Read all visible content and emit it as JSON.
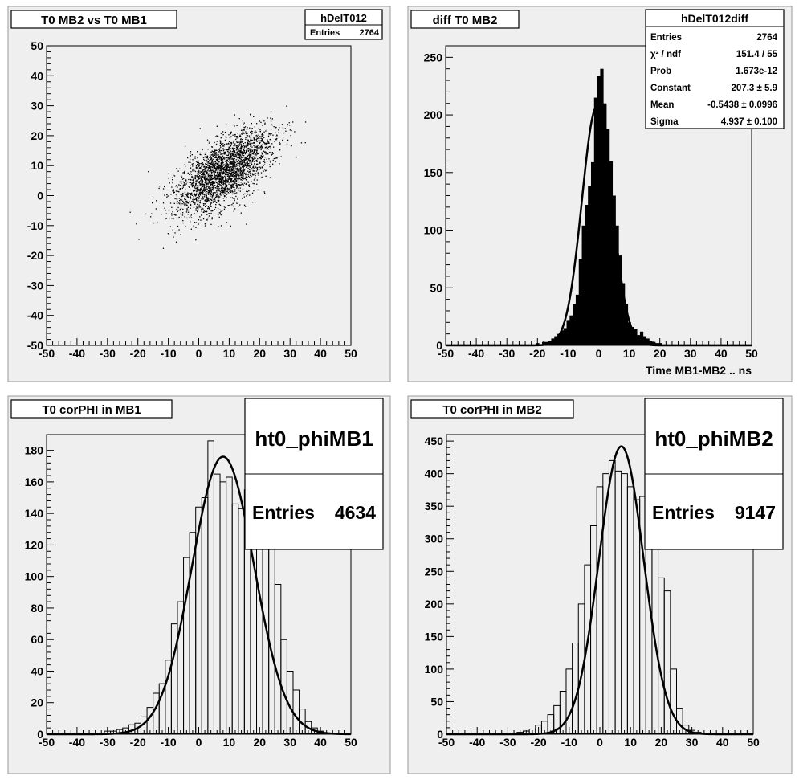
{
  "pads": [
    {
      "id": "tl",
      "title": "T0 MB2 vs T0 MB1",
      "stats": {
        "name": "hDelT012",
        "rows": [
          {
            "label": "Entries",
            "value": "2764"
          }
        ]
      },
      "chart_data": {
        "type": "scatter",
        "xlim": [
          -50,
          50
        ],
        "ylim": [
          -50,
          50
        ],
        "x_ticks": [
          -50,
          -40,
          -30,
          -20,
          -10,
          0,
          10,
          20,
          30,
          40,
          50
        ],
        "y_ticks": [
          -50,
          -40,
          -30,
          -20,
          -10,
          0,
          10,
          20,
          30,
          40,
          50
        ],
        "entries": 2764,
        "distribution": {
          "mean_x": 8,
          "mean_y": 8,
          "sigma_major": 9.5,
          "sigma_minor": 4.5,
          "angle_deg": 40
        },
        "xlabel": "",
        "ylabel": ""
      }
    },
    {
      "id": "tr",
      "title": "diff T0 MB2",
      "stats": {
        "name": "hDelT012diff",
        "rows": [
          {
            "label": "Entries",
            "value": "2764"
          },
          {
            "label": "χ² / ndf",
            "value": "151.4 / 55"
          },
          {
            "label": "Prob",
            "value": "1.673e-12"
          },
          {
            "label": "Constant",
            "value": "207.3 ± 5.9"
          },
          {
            "label": "Mean",
            "value": "-0.5438 ± 0.0996"
          },
          {
            "label": "Sigma",
            "value": "4.937 ± 0.100"
          }
        ]
      },
      "chart_data": {
        "type": "bar",
        "style": "filled-histogram",
        "xlim": [
          -50,
          50
        ],
        "ylim": [
          0,
          260
        ],
        "x_ticks": [
          -50,
          -40,
          -30,
          -20,
          -10,
          0,
          10,
          20,
          30,
          40,
          50
        ],
        "y_ticks": [
          0,
          50,
          100,
          150,
          200,
          250
        ],
        "xlabel": "Time MB1-MB2  ..  ns",
        "bins": {
          "x": [
            -20,
            -19,
            -18,
            -17,
            -16,
            -15,
            -14,
            -13,
            -12,
            -11,
            -10,
            -9,
            -8,
            -7,
            -6,
            -5,
            -4,
            -3,
            -2,
            -1,
            0,
            1,
            2,
            3,
            4,
            5,
            6,
            7,
            8,
            9,
            10,
            11,
            12,
            13,
            14,
            15,
            16,
            17,
            18,
            19,
            20
          ],
          "y": [
            2,
            1,
            3,
            3,
            4,
            6,
            8,
            10,
            13,
            15,
            22,
            26,
            36,
            44,
            75,
            104,
            122,
            138,
            159,
            215,
            234,
            240,
            210,
            188,
            160,
            130,
            104,
            78,
            54,
            36,
            20,
            16,
            14,
            9,
            12,
            8,
            6,
            4,
            3,
            2,
            2
          ]
        },
        "fit": {
          "type": "gaus",
          "constant": 207.3,
          "mean": -0.5438,
          "sigma": 4.937
        }
      }
    },
    {
      "id": "bl",
      "title": "T0 corPHI in MB1",
      "stats": {
        "name": "ht0_phiMB1",
        "rows": [
          {
            "label": "Entries",
            "value": "4634"
          }
        ]
      },
      "chart_data": {
        "type": "bar",
        "style": "outline-histogram",
        "xlim": [
          -50,
          50
        ],
        "ylim": [
          0,
          190
        ],
        "x_ticks": [
          -50,
          -40,
          -30,
          -20,
          -10,
          0,
          10,
          20,
          30,
          40,
          50
        ],
        "y_ticks": [
          0,
          20,
          40,
          60,
          80,
          100,
          120,
          140,
          160,
          180
        ],
        "bins": {
          "x": [
            -30,
            -28,
            -26,
            -24,
            -22,
            -20,
            -18,
            -16,
            -14,
            -12,
            -10,
            -8,
            -6,
            -4,
            -2,
            0,
            2,
            4,
            6,
            8,
            10,
            12,
            14,
            16,
            18,
            20,
            22,
            24,
            26,
            28,
            30,
            32,
            34,
            36,
            38,
            40
          ],
          "y": [
            2,
            2,
            3,
            4,
            6,
            7,
            11,
            17,
            26,
            32,
            47,
            70,
            84,
            112,
            128,
            144,
            150,
            186,
            165,
            160,
            163,
            146,
            143,
            155,
            128,
            134,
            140,
            130,
            95,
            60,
            40,
            28,
            16,
            8,
            4,
            2
          ]
        },
        "fit": {
          "type": "gaus",
          "constant": 176,
          "mean": 8,
          "sigma": 10.2
        }
      }
    },
    {
      "id": "br",
      "title": "T0 corPHI in MB2",
      "stats": {
        "name": "ht0_phiMB2",
        "rows": [
          {
            "label": "Entries",
            "value": "9147"
          }
        ]
      },
      "chart_data": {
        "type": "bar",
        "style": "outline-histogram",
        "xlim": [
          -50,
          50
        ],
        "ylim": [
          0,
          460
        ],
        "x_ticks": [
          -50,
          -40,
          -30,
          -20,
          -10,
          0,
          10,
          20,
          30,
          40,
          50
        ],
        "y_ticks": [
          0,
          50,
          100,
          150,
          200,
          250,
          300,
          350,
          400,
          450
        ],
        "bins": {
          "x": [
            -26,
            -24,
            -22,
            -20,
            -18,
            -16,
            -14,
            -12,
            -10,
            -8,
            -6,
            -4,
            -2,
            0,
            2,
            4,
            6,
            8,
            10,
            12,
            14,
            16,
            18,
            20,
            22,
            24,
            26,
            28,
            30,
            32
          ],
          "y": [
            3,
            5,
            8,
            14,
            20,
            30,
            44,
            66,
            100,
            140,
            200,
            260,
            320,
            380,
            400,
            420,
            404,
            400,
            380,
            360,
            365,
            340,
            330,
            240,
            220,
            100,
            40,
            14,
            6,
            3
          ]
        },
        "fit": {
          "type": "gaus",
          "constant": 442,
          "mean": 7,
          "sigma": 7.3
        }
      }
    }
  ]
}
